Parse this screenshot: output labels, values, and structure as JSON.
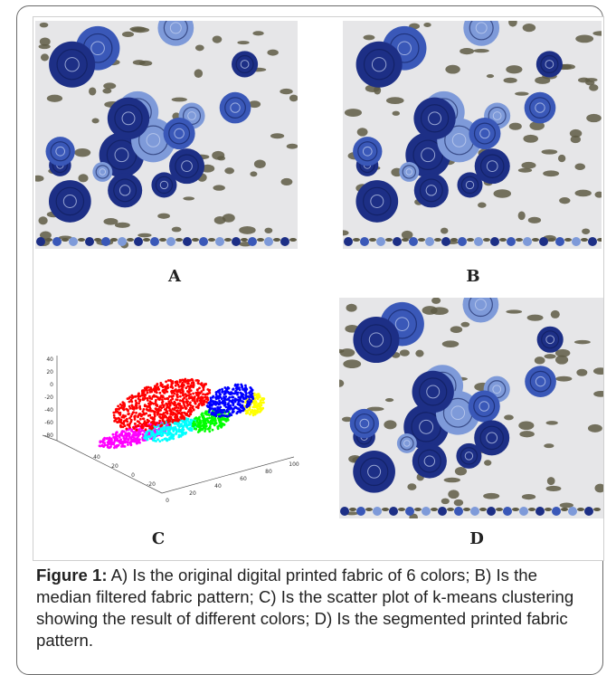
{
  "figure": {
    "panels": [
      {
        "id": "A",
        "label": "A"
      },
      {
        "id": "B",
        "label": "B"
      },
      {
        "id": "C",
        "label": "C"
      },
      {
        "id": "D",
        "label": "D"
      }
    ],
    "scatter": {
      "z_ticks": [
        "40",
        "20",
        "0",
        "-20",
        "-40",
        "-60",
        "-80"
      ],
      "y_ticks": [
        "40",
        "20",
        "0",
        "-20"
      ],
      "x_ticks": [
        "0",
        "20",
        "40",
        "60",
        "80",
        "100"
      ],
      "cluster_colors": [
        "#ff0000",
        "#0000ff",
        "#00ff00",
        "#ffff00",
        "#ff00ff",
        "#00ffff"
      ]
    },
    "pattern_colors": {
      "background": "#e6e6e8",
      "rose_dark": "#1d2f86",
      "rose_mid": "#3a58b8",
      "rose_light": "#7e9ad9",
      "leaf": "#5e5a44"
    }
  },
  "caption": {
    "label": "Figure 1:",
    "text": " A) Is the original digital printed fabric of 6 colors; B) Is the median filtered fabric pattern; C) Is the scatter plot of k-means clustering showing the result of different colors; D) Is the segmented printed fabric pattern."
  }
}
